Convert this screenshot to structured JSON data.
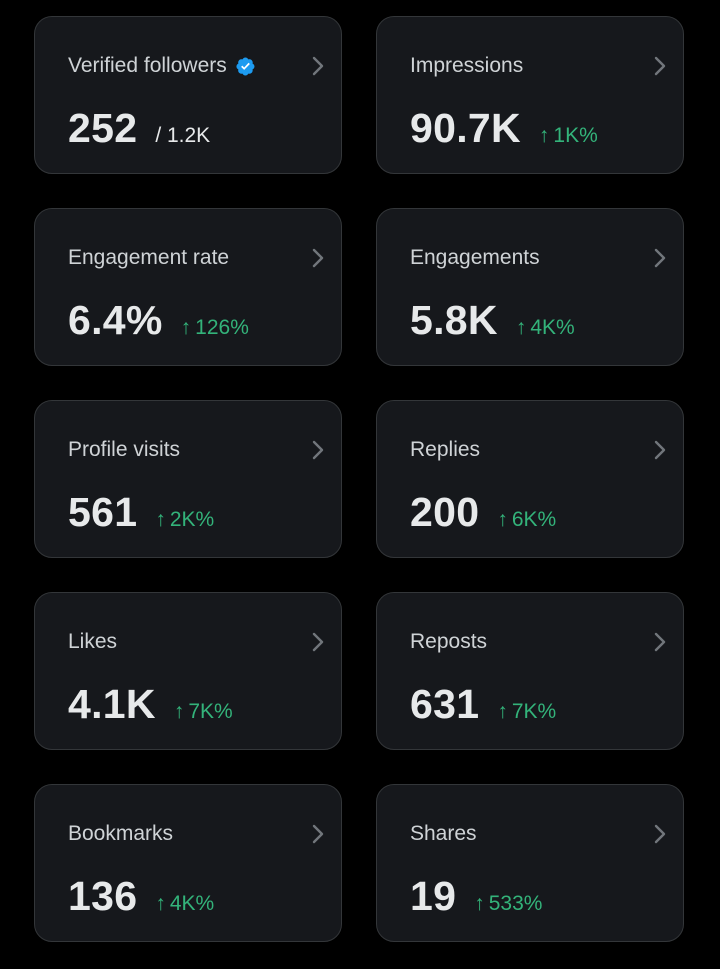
{
  "accent_color": "#1d9bf0",
  "positive_color": "#33b37a",
  "cards": [
    {
      "label": "Verified followers",
      "value": "252",
      "total": "/ 1.2K",
      "verified": true
    },
    {
      "label": "Impressions",
      "value": "90.7K",
      "change": "1K%",
      "change_direction": "up"
    },
    {
      "label": "Engagement rate",
      "value": "6.4%",
      "change": "126%",
      "change_direction": "up"
    },
    {
      "label": "Engagements",
      "value": "5.8K",
      "change": "4K%",
      "change_direction": "up"
    },
    {
      "label": "Profile visits",
      "value": "561",
      "change": "2K%",
      "change_direction": "up"
    },
    {
      "label": "Replies",
      "value": "200",
      "change": "6K%",
      "change_direction": "up"
    },
    {
      "label": "Likes",
      "value": "4.1K",
      "change": "7K%",
      "change_direction": "up"
    },
    {
      "label": "Reposts",
      "value": "631",
      "change": "7K%",
      "change_direction": "up"
    },
    {
      "label": "Bookmarks",
      "value": "136",
      "change": "4K%",
      "change_direction": "up"
    },
    {
      "label": "Shares",
      "value": "19",
      "change": "533%",
      "change_direction": "up"
    }
  ],
  "icons": {
    "chevron": "chevron-right-icon",
    "verified": "verified-badge-icon",
    "arrow": "arrow-up-icon"
  },
  "arrow_glyph": "↑"
}
